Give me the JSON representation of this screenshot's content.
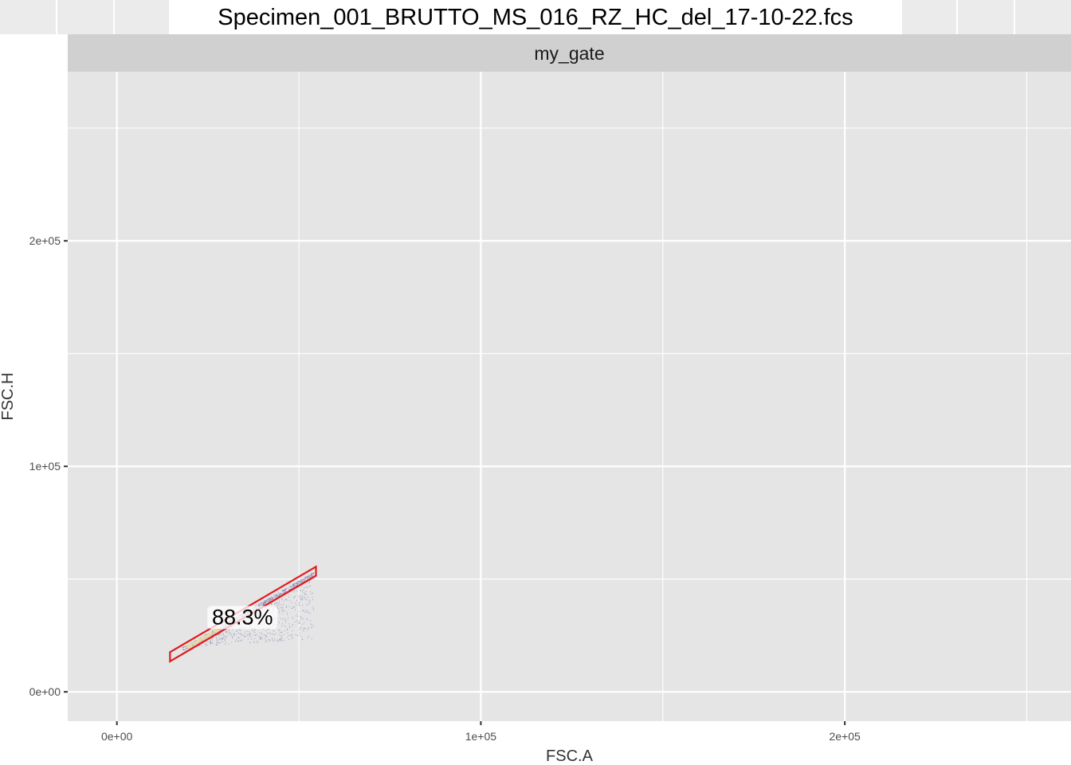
{
  "chart_data": {
    "type": "scatter",
    "title": "Specimen_001_BRUTTO_MS_016_RZ_HC_del_17-10-22.fcs",
    "facet_label": "my_gate",
    "xlabel": "FSC.A",
    "ylabel": "FSC.H",
    "xlim": [
      -13500,
      262144
    ],
    "ylim": [
      -13000,
      275000
    ],
    "x_ticks": [
      0,
      100000,
      200000
    ],
    "x_tick_labels": [
      "0e+00",
      "1e+05",
      "2e+05"
    ],
    "y_ticks": [
      0,
      100000,
      200000
    ],
    "y_tick_labels": [
      "0e+00",
      "1e+05",
      "2e+05"
    ],
    "grid": true,
    "background": "#e5e5e5",
    "gate": {
      "name": "my_gate",
      "color": "#e41a1c",
      "percent_label": "88.3%",
      "label_x": 34500,
      "label_y": 33500,
      "vertices": [
        [
          14600,
          13500
        ],
        [
          14600,
          17600
        ],
        [
          54700,
          55500
        ],
        [
          54700,
          51500
        ]
      ]
    },
    "events": {
      "color": "#6b6ba8",
      "density_color": "#e8d9a8",
      "x_range": [
        18000,
        54000
      ],
      "y_range": [
        20000,
        53000
      ]
    }
  }
}
